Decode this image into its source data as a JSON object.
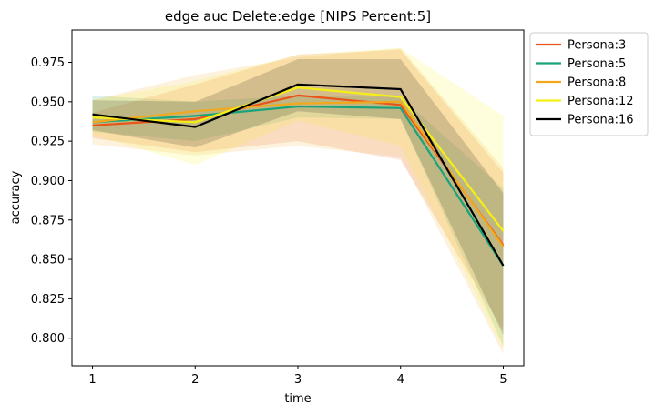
{
  "chart_data": {
    "type": "line",
    "title": "edge auc Delete:edge [NIPS Percent:5]",
    "xlabel": "time",
    "ylabel": "accuracy",
    "x": [
      1,
      2,
      3,
      4,
      5
    ],
    "xlim": [
      0.8,
      5.2
    ],
    "ylim": [
      0.7825,
      0.9955
    ],
    "yticks": [
      0.8,
      0.825,
      0.85,
      0.875,
      0.9,
      0.925,
      0.95,
      0.975
    ],
    "ytick_labels": [
      "0.800",
      "0.825",
      "0.850",
      "0.875",
      "0.900",
      "0.925",
      "0.950",
      "0.975"
    ],
    "xtick_labels": [
      "1",
      "2",
      "3",
      "4",
      "5"
    ],
    "grid": false,
    "legend_position": "outside-top-right",
    "series": [
      {
        "name": "Persona:3",
        "color": "#e8541a",
        "values": [
          0.935,
          0.939,
          0.954,
          0.948,
          0.859
        ],
        "lower": [
          0.927,
          0.918,
          0.925,
          0.913,
          0.805
        ],
        "upper": [
          0.943,
          0.961,
          0.98,
          0.983,
          0.905
        ]
      },
      {
        "name": "Persona:5",
        "color": "#19a37a",
        "values": [
          0.937,
          0.941,
          0.947,
          0.946,
          0.846
        ],
        "lower": [
          0.931,
          0.925,
          0.94,
          0.939,
          0.795
        ],
        "upper": [
          0.954,
          0.95,
          0.954,
          0.953,
          0.895
        ]
      },
      {
        "name": "Persona:8",
        "color": "#f2a81d",
        "values": [
          0.937,
          0.944,
          0.949,
          0.95,
          0.858
        ],
        "lower": [
          0.923,
          0.916,
          0.922,
          0.915,
          0.79
        ],
        "upper": [
          0.951,
          0.967,
          0.978,
          0.984,
          0.908
        ]
      },
      {
        "name": "Persona:12",
        "color": "#f6ef14",
        "values": [
          0.94,
          0.937,
          0.959,
          0.953,
          0.868
        ],
        "lower": [
          0.929,
          0.91,
          0.938,
          0.922,
          0.793
        ],
        "upper": [
          0.951,
          0.963,
          0.98,
          0.984,
          0.941
        ]
      },
      {
        "name": "Persona:16",
        "color": "#000000",
        "values": [
          0.942,
          0.934,
          0.961,
          0.958,
          0.846
        ],
        "lower": [
          0.932,
          0.921,
          0.944,
          0.939,
          0.802
        ],
        "upper": [
          0.951,
          0.95,
          0.977,
          0.977,
          0.892
        ]
      }
    ]
  }
}
